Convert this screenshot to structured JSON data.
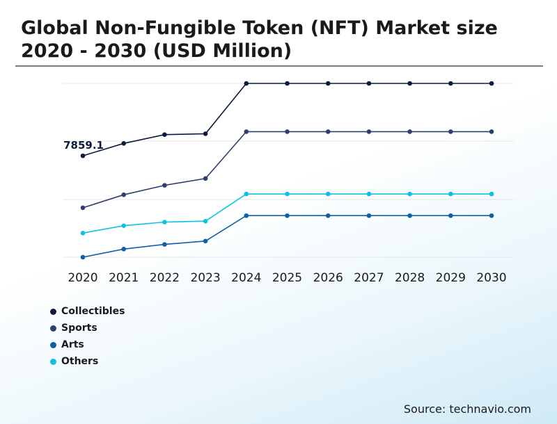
{
  "title": "Global Non-Fungible Token (NFT) Market size 2020 - 2030 (USD Million)",
  "source": "Source: technavio.com",
  "chart_data": {
    "type": "line",
    "title": "Global Non-Fungible Token (NFT) Market size 2020 - 2030 (USD Million)",
    "x": [
      "2020",
      "2021",
      "2022",
      "2023",
      "2024",
      "2025",
      "2026",
      "2027",
      "2028",
      "2029",
      "2030"
    ],
    "ylabel": "",
    "xlabel": "",
    "grid": true,
    "legend_position": "bottom-left",
    "annotations": [
      {
        "series": "Collectibles",
        "x": "2020",
        "label": "7859.1"
      }
    ],
    "series": [
      {
        "name": "Collectibles",
        "color": "#0d1b3e",
        "values": [
          7859.1,
          8820,
          9500,
          9570,
          13470,
          13470,
          13470,
          13470,
          13470,
          13470,
          13470
        ]
      },
      {
        "name": "Sports",
        "color": "#2e3f6e",
        "values": [
          3830,
          4840,
          5570,
          6100,
          9730,
          9730,
          9730,
          9730,
          9730,
          9730,
          9730
        ]
      },
      {
        "name": "Arts",
        "color": "#1060a8",
        "values": [
          0,
          630,
          990,
          1250,
          3220,
          3220,
          3220,
          3220,
          3220,
          3220,
          3220
        ]
      },
      {
        "name": "Others",
        "color": "#0fc1e0",
        "values": [
          1870,
          2440,
          2720,
          2790,
          4900,
          4900,
          4900,
          4900,
          4900,
          4900,
          4900
        ]
      }
    ]
  }
}
